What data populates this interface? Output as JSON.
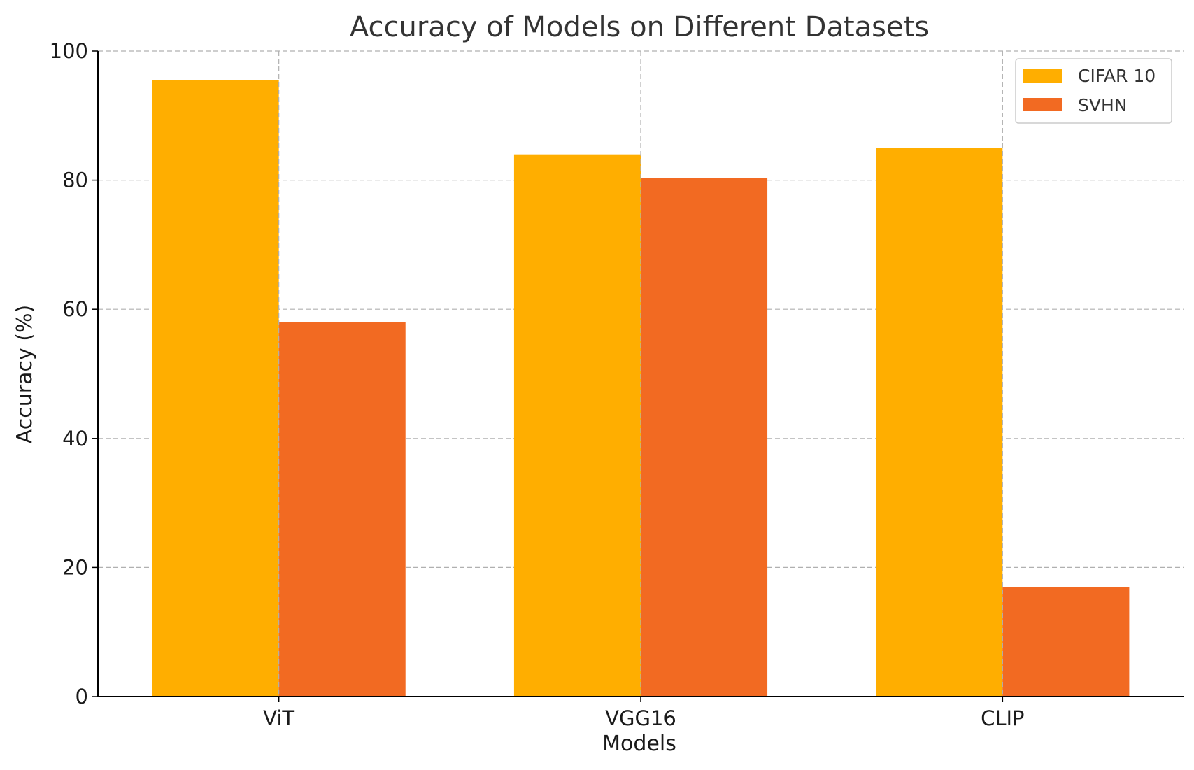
{
  "chart_data": {
    "type": "bar",
    "title": "Accuracy of Models on Different Datasets",
    "xlabel": "Models",
    "ylabel": "Accuracy (%)",
    "categories": [
      "ViT",
      "VGG16",
      "CLIP"
    ],
    "series": [
      {
        "name": "CIFAR 10",
        "color": "#FFAE00",
        "values": [
          95.5,
          84,
          85
        ]
      },
      {
        "name": "SVHN",
        "color": "#F26A22",
        "values": [
          58,
          80.3,
          17
        ]
      }
    ],
    "ylim": [
      0,
      100
    ],
    "yticks": [
      0,
      20,
      40,
      60,
      80,
      100
    ],
    "grid": true,
    "legend_position": "top-right"
  }
}
